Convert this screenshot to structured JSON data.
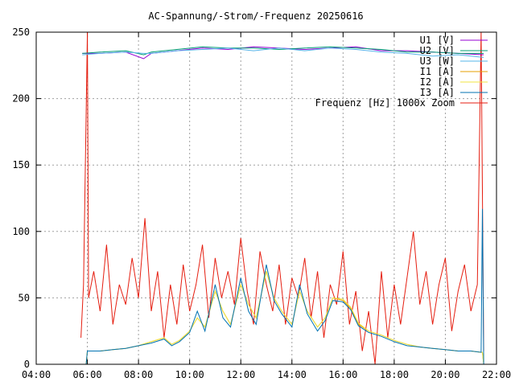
{
  "chart_data": {
    "type": "line",
    "title": "AC-Spannung/-Strom/-Frequenz 20250616",
    "xlabel": "",
    "ylabel": "",
    "xlim": [
      4,
      22
    ],
    "ylim": [
      0,
      250
    ],
    "x_ticks": [
      4,
      6,
      8,
      10,
      12,
      14,
      16,
      18,
      20,
      22
    ],
    "x_tick_labels": [
      "04:00",
      "06:00",
      "08:00",
      "10:00",
      "12:00",
      "14:00",
      "16:00",
      "18:00",
      "20:00",
      "22:00"
    ],
    "y_ticks": [
      0,
      50,
      100,
      150,
      200,
      250
    ],
    "y_tick_labels": [
      "0",
      "50",
      "100",
      "150",
      "200",
      "250"
    ],
    "grid": true,
    "legend_position": "top-right",
    "x_unit": "hours of day",
    "voltage_x": [
      5.8,
      6.5,
      7.5,
      8.2,
      8.5,
      9.5,
      10.5,
      11.5,
      12.5,
      13.5,
      14.5,
      15.5,
      16.5,
      17.5,
      18.5,
      19.5,
      20.5,
      21.5
    ],
    "current_x": [
      5.8,
      5.95,
      6.0,
      6.5,
      7.0,
      7.5,
      8.0,
      8.5,
      9.0,
      9.3,
      9.6,
      10.0,
      10.3,
      10.6,
      11.0,
      11.3,
      11.6,
      12.0,
      12.3,
      12.6,
      13.0,
      13.3,
      13.6,
      14.0,
      14.3,
      14.6,
      15.0,
      15.3,
      15.6,
      16.0,
      16.3,
      16.6,
      17.0,
      17.5,
      18.0,
      18.5,
      19.0,
      19.5,
      20.0,
      20.5,
      21.0,
      21.4,
      21.45,
      21.5
    ],
    "freq_x": [
      5.75,
      5.85,
      6.0,
      6.05,
      6.25,
      6.5,
      6.75,
      7.0,
      7.25,
      7.5,
      7.75,
      8.0,
      8.25,
      8.5,
      8.75,
      9.0,
      9.25,
      9.5,
      9.75,
      10.0,
      10.25,
      10.5,
      10.75,
      11.0,
      11.25,
      11.5,
      11.75,
      12.0,
      12.25,
      12.5,
      12.75,
      13.0,
      13.25,
      13.5,
      13.75,
      14.0,
      14.25,
      14.5,
      14.75,
      15.0,
      15.25,
      15.5,
      15.75,
      16.0,
      16.25,
      16.5,
      16.75,
      17.0,
      17.25,
      17.5,
      17.75,
      18.0,
      18.25,
      18.5,
      18.75,
      19.0,
      19.25,
      19.5,
      19.75,
      20.0,
      20.25,
      20.5,
      20.75,
      21.0,
      21.25,
      21.4,
      21.5
    ],
    "series": [
      {
        "name": "U1 [V]",
        "color": "#9400d3",
        "values": [
          234,
          234,
          235,
          230,
          234,
          236,
          238,
          237,
          239,
          238,
          237,
          238,
          239,
          236,
          236,
          235,
          234,
          233
        ]
      },
      {
        "name": "U2 [V]",
        "color": "#009e73",
        "values": [
          234,
          235,
          236,
          233,
          235,
          237,
          239,
          238,
          238,
          237,
          238,
          239,
          238,
          237,
          235,
          235,
          234,
          234
        ]
      },
      {
        "name": "U3 [W]",
        "color": "#56b4e9",
        "values": [
          233,
          234,
          235,
          234,
          234,
          236,
          237,
          238,
          236,
          238,
          236,
          238,
          237,
          235,
          234,
          232,
          233,
          231
        ]
      },
      {
        "name": "I1 [A]",
        "color": "#e69f00",
        "values": [
          0,
          0,
          10,
          10,
          11,
          12,
          14,
          17,
          20,
          15,
          18,
          25,
          35,
          28,
          55,
          40,
          30,
          60,
          45,
          35,
          70,
          50,
          40,
          30,
          55,
          40,
          28,
          35,
          50,
          48,
          42,
          30,
          25,
          22,
          18,
          15,
          13,
          12,
          11,
          10,
          10,
          9,
          9,
          0
        ]
      },
      {
        "name": "I2 [A]",
        "color": "#f0e442",
        "values": [
          0,
          0,
          10,
          10,
          11,
          12,
          14,
          17,
          20,
          15,
          18,
          25,
          35,
          28,
          55,
          40,
          30,
          60,
          45,
          35,
          70,
          50,
          40,
          30,
          55,
          40,
          28,
          35,
          50,
          49,
          43,
          31,
          25,
          22,
          18,
          15,
          13,
          12,
          11,
          10,
          10,
          9,
          9,
          0
        ]
      },
      {
        "name": "I3 [A]",
        "color": "#0072b2",
        "values": [
          0,
          0,
          10,
          10,
          11,
          12,
          14,
          16,
          19,
          14,
          17,
          24,
          40,
          25,
          60,
          35,
          28,
          65,
          40,
          30,
          75,
          48,
          38,
          28,
          60,
          38,
          25,
          33,
          48,
          47,
          41,
          29,
          24,
          21,
          17,
          14,
          13,
          12,
          11,
          10,
          10,
          9,
          117,
          0
        ]
      },
      {
        "name": "Frequenz [Hz] 1000x Zoom",
        "color": "#e51e10",
        "values": [
          20,
          60,
          250,
          50,
          70,
          40,
          90,
          30,
          60,
          45,
          80,
          50,
          110,
          40,
          70,
          20,
          60,
          30,
          75,
          40,
          60,
          90,
          35,
          80,
          50,
          70,
          45,
          95,
          55,
          30,
          85,
          60,
          40,
          75,
          30,
          65,
          50,
          80,
          35,
          70,
          20,
          60,
          45,
          85,
          30,
          55,
          10,
          40,
          0,
          70,
          20,
          60,
          30,
          65,
          100,
          45,
          70,
          30,
          60,
          80,
          25,
          55,
          75,
          40,
          60,
          250,
          10
        ]
      }
    ]
  }
}
